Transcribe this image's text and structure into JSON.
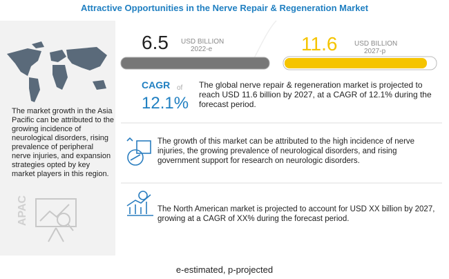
{
  "title": "Attractive Opportunities in the Nerve Repair & Regeneration Market",
  "region": {
    "label": "APAC",
    "description": "The market growth in the Asia Pacific can be attributed to the growing incidence of neurological disorders, rising prevalence of peripheral nerve injuries, and expansion strategies opted by key market players in this region."
  },
  "market_size": [
    {
      "value": "6.5",
      "unit": "USD BILLION",
      "year": "2022-e"
    },
    {
      "value": "11.6",
      "unit": "USD BILLION",
      "year": "2027-p"
    }
  ],
  "cagr": {
    "label": "CAGR",
    "connector": "of",
    "value": "12.1%"
  },
  "summary": "The global nerve repair & regeneration market is projected to reach USD 11.6 billion by 2027, at a CAGR of 12.1% during the forecast period.",
  "insights": [
    "The growth of this market can be attributed to the high incidence of nerve injuries, the growing prevalence of neurological disorders, and rising government support for research on neurologic disorders.",
    "The North American market is projected to account for USD XX billion by 2027, growing at a CAGR of XX% during the forecast period."
  ],
  "footnote": "e-estimated, p-projected"
}
